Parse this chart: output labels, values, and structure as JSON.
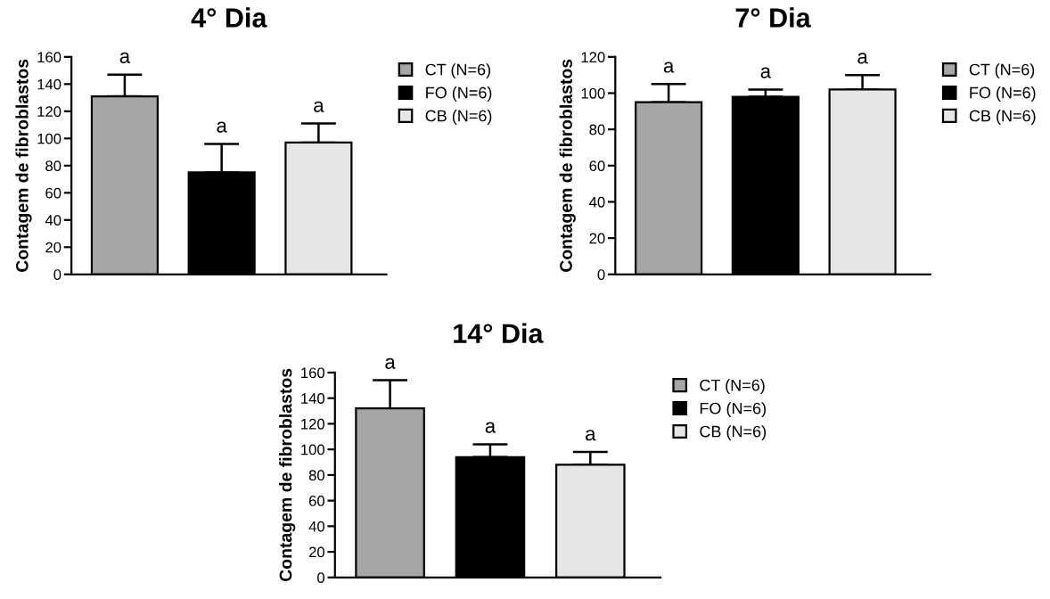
{
  "chart_data": [
    {
      "type": "bar",
      "title": "4° Dia",
      "ylabel": "Contagem de fibroblastos",
      "categories": [
        null,
        null,
        null
      ],
      "ylim": [
        0,
        160
      ],
      "yticks": [
        0,
        20,
        40,
        60,
        80,
        100,
        120,
        140,
        160
      ],
      "legend": "right",
      "grid": false,
      "series": [
        {
          "name": "CT (N=6)",
          "color": "#a6a6a6",
          "values": [
            131,
            null,
            null
          ],
          "errors": [
            16,
            null,
            null
          ],
          "value_labels": [
            "a",
            null,
            null
          ]
        },
        {
          "name": "FO (N=6)",
          "color": "#000000",
          "values": [
            null,
            75,
            null
          ],
          "errors": [
            null,
            21,
            null
          ],
          "value_labels": [
            null,
            "a",
            null
          ]
        },
        {
          "name": "CB (N=6)",
          "color": "#e6e6e6",
          "values": [
            null,
            null,
            97
          ],
          "errors": [
            null,
            null,
            14
          ],
          "value_labels": [
            null,
            null,
            "a"
          ]
        }
      ]
    },
    {
      "type": "bar",
      "title": "7° Dia",
      "ylabel": "Contagem de fibroblastos",
      "categories": [
        null,
        null,
        null
      ],
      "ylim": [
        0,
        120
      ],
      "yticks": [
        0,
        20,
        40,
        60,
        80,
        100,
        120
      ],
      "legend": "right",
      "grid": false,
      "series": [
        {
          "name": "CT (N=6)",
          "color": "#a6a6a6",
          "values": [
            95,
            null,
            null
          ],
          "errors": [
            10,
            null,
            null
          ],
          "value_labels": [
            "a",
            null,
            null
          ]
        },
        {
          "name": "FO (N=6)",
          "color": "#000000",
          "values": [
            null,
            98,
            null
          ],
          "errors": [
            null,
            4,
            null
          ],
          "value_labels": [
            null,
            "a",
            null
          ]
        },
        {
          "name": "CB (N=6)",
          "color": "#e6e6e6",
          "values": [
            null,
            null,
            102
          ],
          "errors": [
            null,
            null,
            8
          ],
          "value_labels": [
            null,
            null,
            "a"
          ]
        }
      ]
    },
    {
      "type": "bar",
      "title": "14° Dia",
      "ylabel": "Contagem de fibroblastos",
      "categories": [
        null,
        null,
        null
      ],
      "ylim": [
        0,
        160
      ],
      "yticks": [
        0,
        20,
        40,
        60,
        80,
        100,
        120,
        140,
        160
      ],
      "legend": "right",
      "grid": false,
      "series": [
        {
          "name": "CT (N=6)",
          "color": "#a6a6a6",
          "values": [
            132,
            null,
            null
          ],
          "errors": [
            22,
            null,
            null
          ],
          "value_labels": [
            "a",
            null,
            null
          ]
        },
        {
          "name": "FO (N=6)",
          "color": "#000000",
          "values": [
            null,
            94,
            null
          ],
          "errors": [
            null,
            10,
            null
          ],
          "value_labels": [
            null,
            "a",
            null
          ]
        },
        {
          "name": "CB (N=6)",
          "color": "#e6e6e6",
          "values": [
            null,
            null,
            88
          ],
          "errors": [
            null,
            null,
            10
          ],
          "value_labels": [
            null,
            null,
            "a"
          ]
        }
      ]
    }
  ]
}
